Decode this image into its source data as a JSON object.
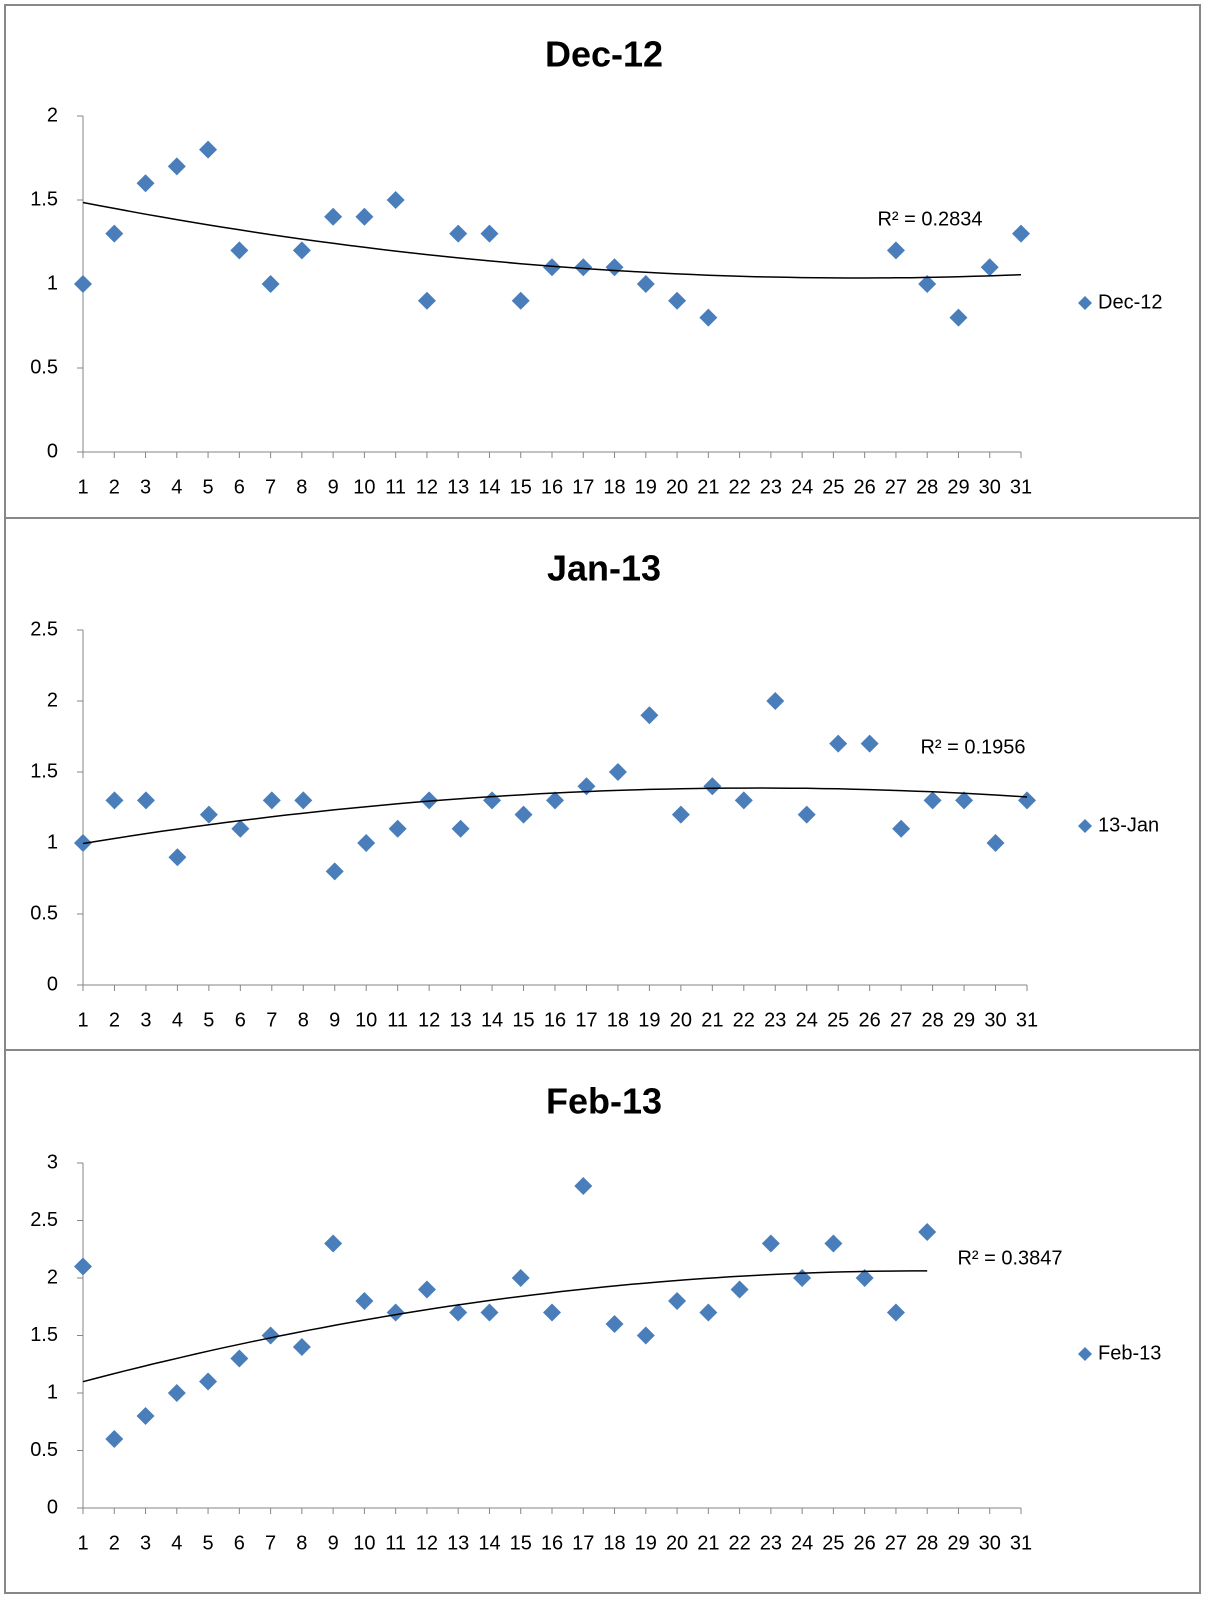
{
  "chart_data": [
    {
      "type": "scatter",
      "title": "Dec-12",
      "x": [
        1,
        2,
        3,
        4,
        5,
        6,
        7,
        8,
        9,
        10,
        11,
        12,
        13,
        14,
        15,
        16,
        17,
        18,
        19,
        20,
        21,
        22,
        23,
        24,
        25,
        26,
        27,
        28,
        29,
        30,
        31
      ],
      "series": [
        {
          "name": "Dec-12",
          "color": "#4a7ebb",
          "values": [
            1,
            1.3,
            1.6,
            1.7,
            1.8,
            1.2,
            1,
            1.2,
            1.4,
            1.4,
            1.5,
            0.9,
            1.3,
            1.3,
            0.9,
            1.1,
            1.1,
            1.1,
            1,
            0.9,
            0.8,
            null,
            null,
            null,
            null,
            null,
            1.2,
            1,
            0.8,
            1.1,
            1.3
          ]
        }
      ],
      "trendline_label": "R² = 0.2834",
      "xlim": [
        1,
        31
      ],
      "xticks": [
        1,
        2,
        3,
        4,
        5,
        6,
        7,
        8,
        9,
        10,
        11,
        12,
        13,
        14,
        15,
        16,
        17,
        18,
        19,
        20,
        21,
        22,
        23,
        24,
        25,
        26,
        27,
        28,
        29,
        30,
        31
      ],
      "ylim": [
        0,
        2
      ],
      "yticks": [
        0,
        0.5,
        1,
        1.5,
        2
      ],
      "legend": "right"
    },
    {
      "type": "scatter",
      "title": "Jan-13",
      "x": [
        1,
        2,
        3,
        4,
        5,
        6,
        7,
        8,
        9,
        10,
        11,
        12,
        13,
        14,
        15,
        16,
        17,
        18,
        19,
        20,
        21,
        22,
        23,
        24,
        25,
        26,
        27,
        28,
        29,
        30,
        31
      ],
      "series": [
        {
          "name": "13-Jan",
          "color": "#4a7ebb",
          "values": [
            1,
            1.3,
            1.3,
            0.9,
            1.2,
            1.1,
            1.3,
            1.3,
            0.8,
            1,
            1.1,
            1.3,
            1.1,
            1.3,
            1.2,
            1.3,
            1.4,
            1.5,
            1.9,
            1.2,
            1.4,
            1.3,
            2,
            1.2,
            1.7,
            1.7,
            1.1,
            1.3,
            1.3,
            1,
            1.3
          ]
        }
      ],
      "trendline_label": "R² = 0.1956",
      "xlim": [
        1,
        31
      ],
      "xticks": [
        1,
        2,
        3,
        4,
        5,
        6,
        7,
        8,
        9,
        10,
        11,
        12,
        13,
        14,
        15,
        16,
        17,
        18,
        19,
        20,
        21,
        22,
        23,
        24,
        25,
        26,
        27,
        28,
        29,
        30,
        31
      ],
      "ylim": [
        0,
        2.5
      ],
      "yticks": [
        0,
        0.5,
        1,
        1.5,
        2,
        2.5
      ],
      "legend": "right"
    },
    {
      "type": "scatter",
      "title": "Feb-13",
      "x": [
        1,
        2,
        3,
        4,
        5,
        6,
        7,
        8,
        9,
        10,
        11,
        12,
        13,
        14,
        15,
        16,
        17,
        18,
        19,
        20,
        21,
        22,
        23,
        24,
        25,
        26,
        27,
        28,
        29,
        30,
        31
      ],
      "series": [
        {
          "name": "Feb-13",
          "color": "#4a7ebb",
          "values": [
            2.1,
            0.6,
            0.8,
            1,
            1.1,
            1.3,
            1.5,
            1.4,
            2.3,
            1.8,
            1.7,
            1.9,
            1.7,
            1.7,
            2,
            1.7,
            2.8,
            1.6,
            1.5,
            1.8,
            1.7,
            1.9,
            2.3,
            2,
            2.3,
            2,
            1.7,
            2.4,
            null,
            null,
            null
          ]
        }
      ],
      "trendline_label": "R² = 0.3847",
      "xlim": [
        1,
        31
      ],
      "xticks": [
        1,
        2,
        3,
        4,
        5,
        6,
        7,
        8,
        9,
        10,
        11,
        12,
        13,
        14,
        15,
        16,
        17,
        18,
        19,
        20,
        21,
        22,
        23,
        24,
        25,
        26,
        27,
        28,
        29,
        30,
        31
      ],
      "ylim": [
        0,
        3
      ],
      "yticks": [
        0,
        0.5,
        1,
        1.5,
        2,
        2.5,
        3
      ],
      "legend": "right"
    }
  ]
}
